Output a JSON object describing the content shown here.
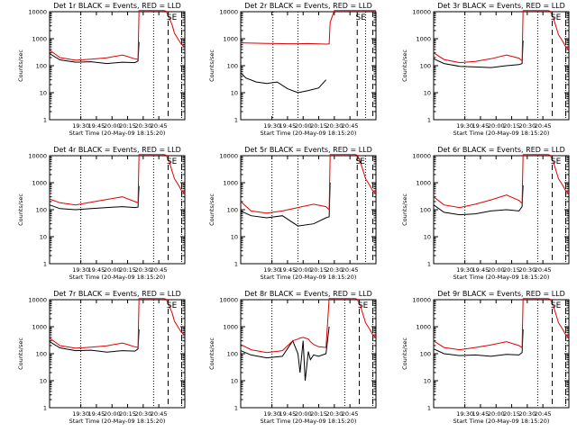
{
  "figure": {
    "colors": {
      "events": "#000000",
      "lld": "#e00000",
      "background": "#ffffff"
    },
    "y_scale": "log",
    "ylim": [
      1,
      10000
    ]
  },
  "chart_data": [
    {
      "type": "line",
      "title": "Det 1r BLACK = Events, RED = LLD",
      "xlabel": "Start Time (20-May-09 18:15:20)",
      "ylabel": "Counts/sec",
      "x_tick_labels": [
        "19:30",
        "19:45",
        "20:00",
        "20:15",
        "20:30",
        "20:45"
      ],
      "y_tick_labels": [
        "1",
        "10",
        "100",
        "1000",
        "10000"
      ],
      "x_minutes": [
        0,
        10,
        25,
        40,
        55,
        70,
        82,
        85,
        86,
        88,
        95,
        100,
        107,
        110,
        112,
        115,
        118,
        120,
        124,
        127,
        130
      ],
      "markers": [
        {
          "label": "S",
          "x_minutes": 115
        },
        {
          "label": "E",
          "x_minutes": 120
        }
      ],
      "dotted_x_minutes": [
        30,
        100,
        127
      ],
      "dashed_x_minutes": [
        114,
        127
      ],
      "series": [
        {
          "name": "Events",
          "values": [
            280,
            165,
            135,
            140,
            120,
            135,
            130,
            150,
            750,
            null,
            null,
            null,
            null,
            null,
            null,
            null,
            null,
            null,
            null,
            null,
            null
          ]
        },
        {
          "name": "LLD",
          "values": [
            380,
            200,
            160,
            175,
            195,
            250,
            180,
            170,
            11000,
            11000,
            11000,
            11000,
            11000,
            11000,
            10500,
            6000,
            3000,
            1600,
            900,
            600,
            500
          ]
        }
      ]
    },
    {
      "type": "line",
      "title": "Det 2r BLACK = Events, RED = LLD",
      "xlabel": "Start Time (20-May-09 18:15:20)",
      "ylabel": "Counts/sec",
      "x_tick_labels": [
        "19:30",
        "19:45",
        "20:00",
        "20:15",
        "20:30",
        "20:45"
      ],
      "y_tick_labels": [
        "1",
        "10",
        "100",
        "1000",
        "10000"
      ],
      "x_minutes": [
        0,
        5,
        15,
        25,
        35,
        45,
        55,
        65,
        75,
        82,
        85,
        86,
        90,
        100,
        110,
        115,
        120,
        125,
        130
      ],
      "markers": [
        {
          "label": "S",
          "x_minutes": 113
        },
        {
          "label": "E",
          "x_minutes": 118
        }
      ],
      "dotted_x_minutes": [
        31,
        55,
        120
      ],
      "dashed_x_minutes": [
        112,
        127
      ],
      "series": [
        {
          "name": "Events",
          "values": [
            55,
            35,
            25,
            22,
            25,
            14,
            10,
            12,
            15,
            30,
            null,
            null,
            null,
            null,
            null,
            null,
            null,
            null,
            null
          ]
        },
        {
          "name": "LLD",
          "values": [
            700,
            690,
            680,
            670,
            660,
            650,
            650,
            660,
            640,
            630,
            640,
            4000,
            11000,
            11000,
            11000,
            11000,
            11000,
            11000,
            11000
          ]
        }
      ]
    },
    {
      "type": "line",
      "title": "Det 3r BLACK = Events, RED = LLD",
      "xlabel": "Start Time (20-May-09 18:15:20)",
      "ylabel": "Counts/sec",
      "x_tick_labels": [
        "19:30",
        "19:45",
        "20:00",
        "20:15",
        "20:30",
        "20:45"
      ],
      "y_tick_labels": [
        "1",
        "10",
        "100",
        "1000",
        "10000"
      ],
      "x_minutes": [
        0,
        10,
        25,
        40,
        55,
        70,
        82,
        85,
        86,
        88,
        95,
        100,
        107,
        110,
        112,
        115,
        118,
        120,
        124,
        127,
        130
      ],
      "markers": [
        {
          "label": "S",
          "x_minutes": 115
        },
        {
          "label": "E",
          "x_minutes": 120
        }
      ],
      "dotted_x_minutes": [
        30,
        100,
        127
      ],
      "dashed_x_minutes": [
        114,
        127
      ],
      "series": [
        {
          "name": "Events",
          "values": [
            180,
            120,
            95,
            90,
            85,
            100,
            110,
            120,
            850,
            null,
            null,
            null,
            null,
            null,
            null,
            null,
            null,
            null,
            null,
            null,
            null
          ]
        },
        {
          "name": "LLD",
          "values": [
            300,
            170,
            130,
            145,
            180,
            250,
            190,
            150,
            11000,
            11000,
            11000,
            11000,
            11000,
            11000,
            10500,
            6000,
            2500,
            1400,
            800,
            500,
            400
          ]
        }
      ]
    },
    {
      "type": "line",
      "title": "Det 4r BLACK = Events, RED = LLD",
      "xlabel": "Start Time (20-May-09 18:15:20)",
      "ylabel": "Counts/sec",
      "x_tick_labels": [
        "19:30",
        "19:45",
        "20:00",
        "20:15",
        "20:30",
        "20:45"
      ],
      "y_tick_labels": [
        "1",
        "10",
        "100",
        "1000",
        "10000"
      ],
      "x_minutes": [
        0,
        10,
        25,
        40,
        55,
        70,
        82,
        85,
        86,
        88,
        95,
        100,
        107,
        110,
        112,
        115,
        118,
        120,
        124,
        127,
        130
      ],
      "markers": [
        {
          "label": "S",
          "x_minutes": 115
        },
        {
          "label": "E",
          "x_minutes": 120
        }
      ],
      "dotted_x_minutes": [
        30,
        100,
        127
      ],
      "dashed_x_minutes": [
        114,
        127
      ],
      "series": [
        {
          "name": "Events",
          "values": [
            150,
            110,
            100,
            110,
            120,
            130,
            120,
            125,
            750,
            null,
            null,
            null,
            null,
            null,
            null,
            null,
            null,
            null,
            null,
            null,
            null
          ]
        },
        {
          "name": "LLD",
          "values": [
            250,
            180,
            150,
            190,
            240,
            300,
            200,
            180,
            11000,
            11000,
            11000,
            11000,
            11000,
            11000,
            10500,
            6000,
            2500,
            1400,
            800,
            500,
            400
          ]
        }
      ]
    },
    {
      "type": "line",
      "title": "Det 5r BLACK = Events, RED = LLD",
      "xlabel": "Start Time (20-May-09 18:15:20)",
      "ylabel": "Counts/sec",
      "x_tick_labels": [
        "19:30",
        "19:45",
        "20:00",
        "20:15",
        "20:30",
        "20:45"
      ],
      "y_tick_labels": [
        "1",
        "10",
        "100",
        "1000",
        "10000"
      ],
      "x_minutes": [
        0,
        10,
        25,
        40,
        55,
        70,
        82,
        85,
        86,
        88,
        95,
        100,
        107,
        110,
        112,
        115,
        118,
        120,
        124,
        127,
        130
      ],
      "markers": [
        {
          "label": "S",
          "x_minutes": 113
        },
        {
          "label": "E",
          "x_minutes": 117
        }
      ],
      "dotted_x_minutes": [
        30,
        55,
        120
      ],
      "dashed_x_minutes": [
        112,
        127
      ],
      "series": [
        {
          "name": "Events",
          "values": [
            90,
            60,
            50,
            60,
            25,
            30,
            50,
            55,
            1000,
            null,
            null,
            null,
            null,
            null,
            null,
            null,
            null,
            null,
            null,
            null,
            null
          ]
        },
        {
          "name": "LLD",
          "values": [
            200,
            90,
            75,
            90,
            120,
            160,
            130,
            100,
            11000,
            11000,
            11000,
            11000,
            11000,
            11000,
            10500,
            6000,
            2500,
            1400,
            800,
            500,
            400
          ]
        }
      ]
    },
    {
      "type": "line",
      "title": "Det 6r BLACK = Events, RED = LLD",
      "xlabel": "Start Time (20-May-09 18:15:20)",
      "ylabel": "Counts/sec",
      "x_tick_labels": [
        "19:30",
        "19:45",
        "20:00",
        "20:15",
        "20:30",
        "20:45"
      ],
      "y_tick_labels": [
        "1",
        "10",
        "100",
        "1000",
        "10000"
      ],
      "x_minutes": [
        0,
        10,
        25,
        40,
        55,
        70,
        82,
        85,
        86,
        88,
        95,
        100,
        107,
        110,
        112,
        115,
        118,
        120,
        124,
        127,
        130
      ],
      "markers": [
        {
          "label": "S",
          "x_minutes": 115
        },
        {
          "label": "E",
          "x_minutes": 120
        }
      ],
      "dotted_x_minutes": [
        30,
        100,
        127
      ],
      "dashed_x_minutes": [
        114,
        127
      ],
      "series": [
        {
          "name": "Events",
          "values": [
            150,
            80,
            65,
            70,
            90,
            100,
            90,
            130,
            800,
            null,
            null,
            null,
            null,
            null,
            null,
            null,
            null,
            null,
            null,
            null,
            null
          ]
        },
        {
          "name": "LLD",
          "values": [
            300,
            150,
            120,
            160,
            230,
            350,
            220,
            170,
            11000,
            11000,
            11000,
            11000,
            11000,
            11000,
            10500,
            6000,
            2500,
            1400,
            800,
            500,
            400
          ]
        }
      ]
    },
    {
      "type": "line",
      "title": "Det 7r BLACK = Events, RED = LLD",
      "xlabel": "Start Time (20-May-09 18:15:20)",
      "ylabel": "Counts/sec",
      "x_tick_labels": [
        "19:30",
        "19:45",
        "20:00",
        "20:15",
        "20:30",
        "20:45"
      ],
      "y_tick_labels": [
        "1",
        "10",
        "100",
        "1000",
        "10000"
      ],
      "x_minutes": [
        0,
        10,
        25,
        40,
        55,
        70,
        82,
        85,
        86,
        88,
        95,
        100,
        107,
        110,
        112,
        115,
        118,
        120,
        124,
        127,
        130
      ],
      "markers": [
        {
          "label": "S",
          "x_minutes": 115
        },
        {
          "label": "E",
          "x_minutes": 120
        }
      ],
      "dotted_x_minutes": [
        30,
        100,
        127
      ],
      "dashed_x_minutes": [
        114,
        127
      ],
      "series": [
        {
          "name": "Events",
          "values": [
            280,
            165,
            130,
            135,
            115,
            130,
            125,
            150,
            800,
            null,
            null,
            null,
            null,
            null,
            null,
            null,
            null,
            null,
            null,
            null,
            null
          ]
        },
        {
          "name": "LLD",
          "values": [
            380,
            200,
            160,
            175,
            195,
            250,
            180,
            170,
            11000,
            11000,
            11000,
            11000,
            11000,
            11000,
            10500,
            6000,
            3000,
            1600,
            900,
            600,
            500
          ]
        }
      ]
    },
    {
      "type": "line",
      "title": "Det 8r BLACK = Events, RED = LLD",
      "xlabel": "Start Time (20-May-09 18:15:20)",
      "ylabel": "Counts/sec",
      "x_tick_labels": [
        "19:30",
        "19:45",
        "20:00",
        "20:15",
        "20:30",
        "20:45"
      ],
      "y_tick_labels": [
        "1",
        "10",
        "100",
        "1000",
        "10000"
      ],
      "x_minutes": [
        0,
        10,
        25,
        40,
        50,
        55,
        57,
        60,
        62,
        65,
        67,
        70,
        75,
        82,
        85,
        86,
        88,
        95,
        100,
        107,
        110,
        112,
        115,
        118,
        120,
        124,
        127,
        130
      ],
      "markers": [
        {
          "label": "S",
          "x_minutes": 115
        },
        {
          "label": "E",
          "x_minutes": 120
        }
      ],
      "dotted_x_minutes": [
        30,
        100,
        127
      ],
      "dashed_x_minutes": [
        114,
        127
      ],
      "series": [
        {
          "name": "Events",
          "values": [
            130,
            90,
            70,
            80,
            300,
            100,
            20,
            300,
            10,
            120,
            60,
            90,
            80,
            100,
            1000,
            null,
            null,
            null,
            null,
            null,
            null,
            null,
            null,
            null,
            null,
            null,
            null,
            null
          ]
        },
        {
          "name": "LLD",
          "values": [
            220,
            140,
            110,
            130,
            300,
            350,
            380,
            400,
            380,
            350,
            280,
            220,
            180,
            170,
            11000,
            11000,
            11000,
            11000,
            11000,
            11000,
            11000,
            10500,
            6000,
            2500,
            1400,
            800,
            500,
            400
          ]
        }
      ]
    },
    {
      "type": "line",
      "title": "Det 9r BLACK = Events, RED = LLD",
      "xlabel": "Start Time (20-May-09 18:15:20)",
      "ylabel": "Counts/sec",
      "x_tick_labels": [
        "19:30",
        "19:45",
        "20:00",
        "20:15",
        "20:30",
        "20:45"
      ],
      "y_tick_labels": [
        "1",
        "10",
        "100",
        "1000",
        "10000"
      ],
      "x_minutes": [
        0,
        10,
        25,
        40,
        55,
        70,
        82,
        85,
        86,
        88,
        95,
        100,
        107,
        110,
        112,
        115,
        118,
        120,
        124,
        127,
        130
      ],
      "markers": [
        {
          "label": "S",
          "x_minutes": 115
        },
        {
          "label": "E",
          "x_minutes": 120
        }
      ],
      "dotted_x_minutes": [
        30,
        100,
        127
      ],
      "dashed_x_minutes": [
        114,
        127
      ],
      "series": [
        {
          "name": "Events",
          "values": [
            150,
            100,
            85,
            90,
            80,
            95,
            90,
            110,
            800,
            null,
            null,
            null,
            null,
            null,
            null,
            null,
            null,
            null,
            null,
            null,
            null
          ]
        },
        {
          "name": "LLD",
          "values": [
            300,
            170,
            140,
            170,
            210,
            280,
            200,
            170,
            11000,
            11000,
            11000,
            11000,
            11000,
            11000,
            10500,
            6000,
            2500,
            1400,
            800,
            500,
            400
          ]
        }
      ]
    }
  ]
}
